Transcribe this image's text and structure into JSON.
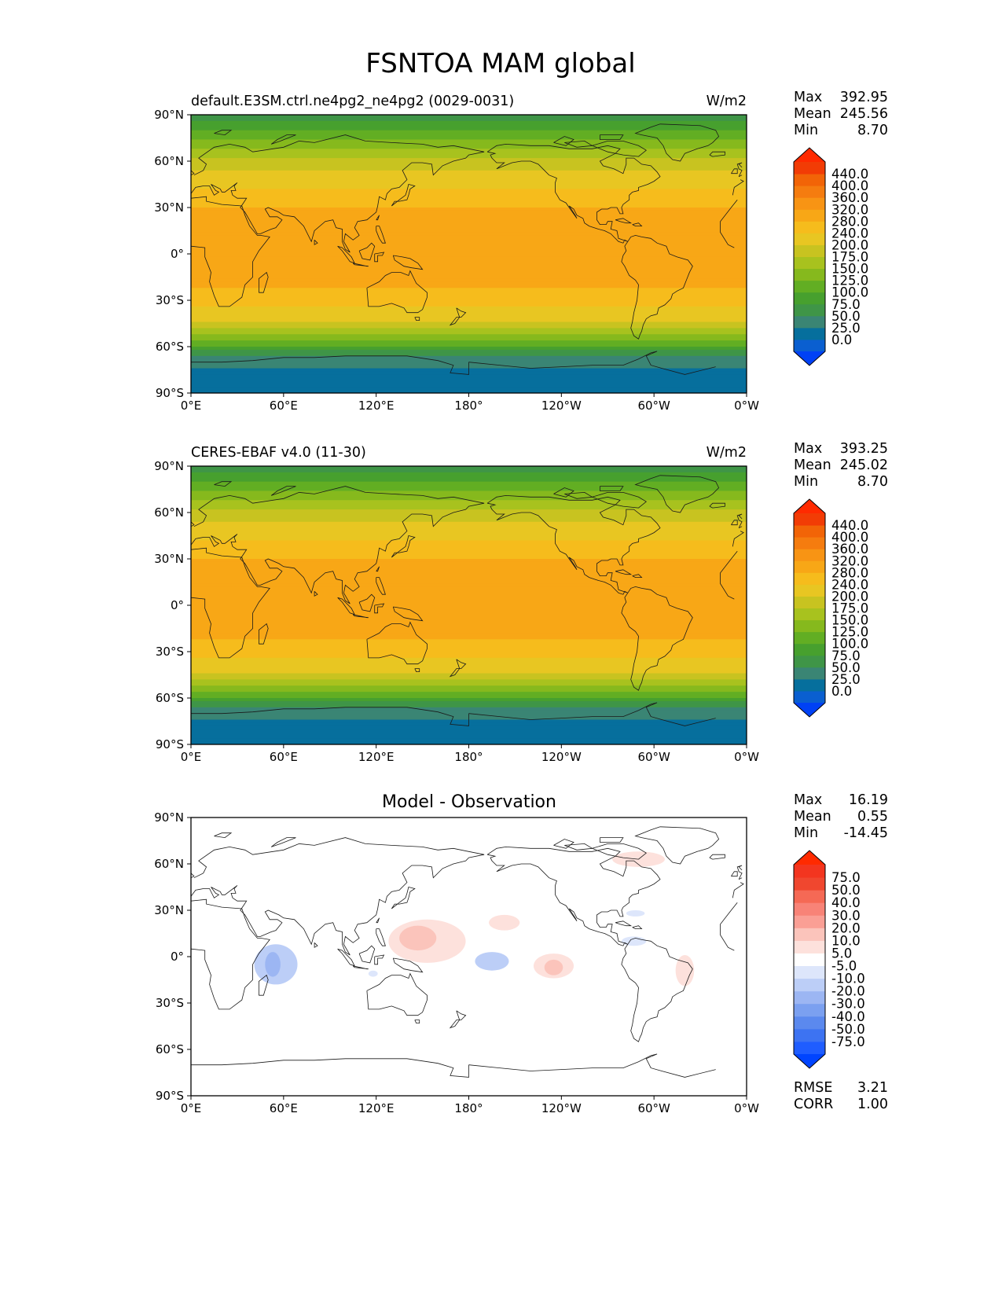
{
  "figure": {
    "title": "FSNTOA MAM global"
  },
  "colors": {
    "levels_main": [
      "#0041f5",
      "#0a5fd0",
      "#066f9d",
      "#3a8574",
      "#3f9547",
      "#47a02e",
      "#62ae23",
      "#86b91d",
      "#a8c21e",
      "#c8c320",
      "#e8c622",
      "#f6bc1c",
      "#f8a716",
      "#f89414",
      "#f57c0f",
      "#f26407",
      "#f23c05",
      "#ff2a00"
    ],
    "levels_diff": [
      "#0044ff",
      "#1f5dff",
      "#3d73f2",
      "#5b89ee",
      "#7ba0f0",
      "#9cb6f3",
      "#bccef7",
      "#dde6fb",
      "#ffffff",
      "#fde1dc",
      "#fbc4bb",
      "#fa9f95",
      "#f88377",
      "#f56955",
      "#f0472f",
      "#f3351f",
      "#ff2a00"
    ]
  },
  "chart_data": [
    {
      "type": "heatmap",
      "title": "default.E3SM.ctrl.ne4pg2_ne4pg2 (0029-0031)",
      "units": "W/m2",
      "xticks": [
        "0°E",
        "60°E",
        "120°E",
        "180°",
        "120°W",
        "60°W",
        "0°W"
      ],
      "yticks": [
        "90°N",
        "60°N",
        "30°N",
        "0°",
        "30°S",
        "60°S",
        "90°S"
      ],
      "xlim": [
        0,
        360
      ],
      "ylim": [
        -90,
        90
      ],
      "stats": [
        {
          "label": "Max",
          "value": "392.95"
        },
        {
          "label": "Mean",
          "value": "245.56"
        },
        {
          "label": "Min",
          "value": "8.70"
        }
      ],
      "colorbar_labels": [
        "440.0",
        "400.0",
        "360.0",
        "320.0",
        "280.0",
        "240.0",
        "200.0",
        "175.0",
        "150.0",
        "125.0",
        "100.0",
        "75.0",
        "50.0",
        "25.0",
        "0.0"
      ],
      "zonal_profile": {
        "lat": [
          90,
          80,
          70,
          60,
          50,
          40,
          30,
          20,
          10,
          0,
          -10,
          -20,
          -30,
          -40,
          -50,
          -60,
          -65,
          -70,
          -80,
          -90
        ],
        "value": [
          60,
          100,
          145,
          180,
          215,
          250,
          280,
          300,
          310,
          305,
          300,
          285,
          255,
          215,
          165,
          100,
          50,
          30,
          18,
          12
        ]
      }
    },
    {
      "type": "heatmap",
      "title": "CERES-EBAF v4.0 (11-30)",
      "units": "W/m2",
      "xticks": [
        "0°E",
        "60°E",
        "120°E",
        "180°",
        "120°W",
        "60°W",
        "0°W"
      ],
      "yticks": [
        "90°N",
        "60°N",
        "30°N",
        "0°",
        "30°S",
        "60°S",
        "90°S"
      ],
      "xlim": [
        0,
        360
      ],
      "ylim": [
        -90,
        90
      ],
      "stats": [
        {
          "label": "Max",
          "value": "393.25"
        },
        {
          "label": "Mean",
          "value": "245.02"
        },
        {
          "label": "Min",
          "value": "8.70"
        }
      ],
      "colorbar_labels": [
        "440.0",
        "400.0",
        "360.0",
        "320.0",
        "280.0",
        "240.0",
        "200.0",
        "175.0",
        "150.0",
        "125.0",
        "100.0",
        "75.0",
        "50.0",
        "25.0",
        "0.0"
      ],
      "zonal_profile": {
        "lat": [
          90,
          80,
          70,
          60,
          50,
          40,
          30,
          20,
          10,
          0,
          -10,
          -20,
          -30,
          -40,
          -50,
          -60,
          -65,
          -70,
          -80,
          -90
        ],
        "value": [
          60,
          100,
          145,
          180,
          215,
          250,
          280,
          300,
          310,
          305,
          300,
          285,
          255,
          215,
          165,
          100,
          50,
          30,
          18,
          12
        ]
      }
    },
    {
      "type": "heatmap",
      "title": "Model - Observation",
      "xticks": [
        "0°E",
        "60°E",
        "120°E",
        "180°",
        "120°W",
        "60°W",
        "0°W"
      ],
      "yticks": [
        "90°N",
        "60°N",
        "30°N",
        "0°",
        "30°S",
        "60°S",
        "90°S"
      ],
      "xlim": [
        0,
        360
      ],
      "ylim": [
        -90,
        90
      ],
      "stats": [
        {
          "label": "Max",
          "value": "16.19"
        },
        {
          "label": "Mean",
          "value": "0.55"
        },
        {
          "label": "Min",
          "value": "-14.45"
        }
      ],
      "colorbar_labels": [
        "75.0",
        "50.0",
        "40.0",
        "30.0",
        "20.0",
        "10.0",
        "5.0",
        "-5.0",
        "-10.0",
        "-20.0",
        "-30.0",
        "-40.0",
        "-50.0",
        "-75.0"
      ],
      "metrics": [
        {
          "label": "RMSE",
          "value": "3.21"
        },
        {
          "label": "CORR",
          "value": "1.00"
        }
      ],
      "anomalies": [
        {
          "lon": 153,
          "lat": 10,
          "value": 10,
          "rlon": 25,
          "rlat": 14
        },
        {
          "lon": 147,
          "lat": 12,
          "value": 20,
          "rlon": 12,
          "rlat": 8
        },
        {
          "lon": 55,
          "lat": -5,
          "value": -10,
          "rlon": 14,
          "rlat": 13
        },
        {
          "lon": 53,
          "lat": -5,
          "value": -20,
          "rlon": 5,
          "rlat": 8
        },
        {
          "lon": 195,
          "lat": -3,
          "value": -10,
          "rlon": 11,
          "rlat": 6
        },
        {
          "lon": 235,
          "lat": -6,
          "value": 10,
          "rlon": 13,
          "rlat": 8
        },
        {
          "lon": 235,
          "lat": -7,
          "value": 20,
          "rlon": 6,
          "rlat": 5
        },
        {
          "lon": 320,
          "lat": -9,
          "value": 10,
          "rlon": 6,
          "rlat": 10
        },
        {
          "lon": 290,
          "lat": 63,
          "value": 10,
          "rlon": 17,
          "rlat": 5
        },
        {
          "lon": 203,
          "lat": 22,
          "value": 10,
          "rlon": 10,
          "rlat": 5
        },
        {
          "lon": 288,
          "lat": 28,
          "value": -5,
          "rlon": 6,
          "rlat": 2
        },
        {
          "lon": 287,
          "lat": 10,
          "value": -5,
          "rlon": 8,
          "rlat": 3
        },
        {
          "lon": 90,
          "lat": 6,
          "value": 5,
          "rlon": 7,
          "rlat": 3
        },
        {
          "lon": 78,
          "lat": 73,
          "value": 5,
          "rlon": 5,
          "rlat": 2
        },
        {
          "lon": 318,
          "lat": 58,
          "value": 5,
          "rlon": 5,
          "rlat": 2
        },
        {
          "lon": 118,
          "lat": -11,
          "value": -5,
          "rlon": 3,
          "rlat": 2
        }
      ]
    }
  ]
}
